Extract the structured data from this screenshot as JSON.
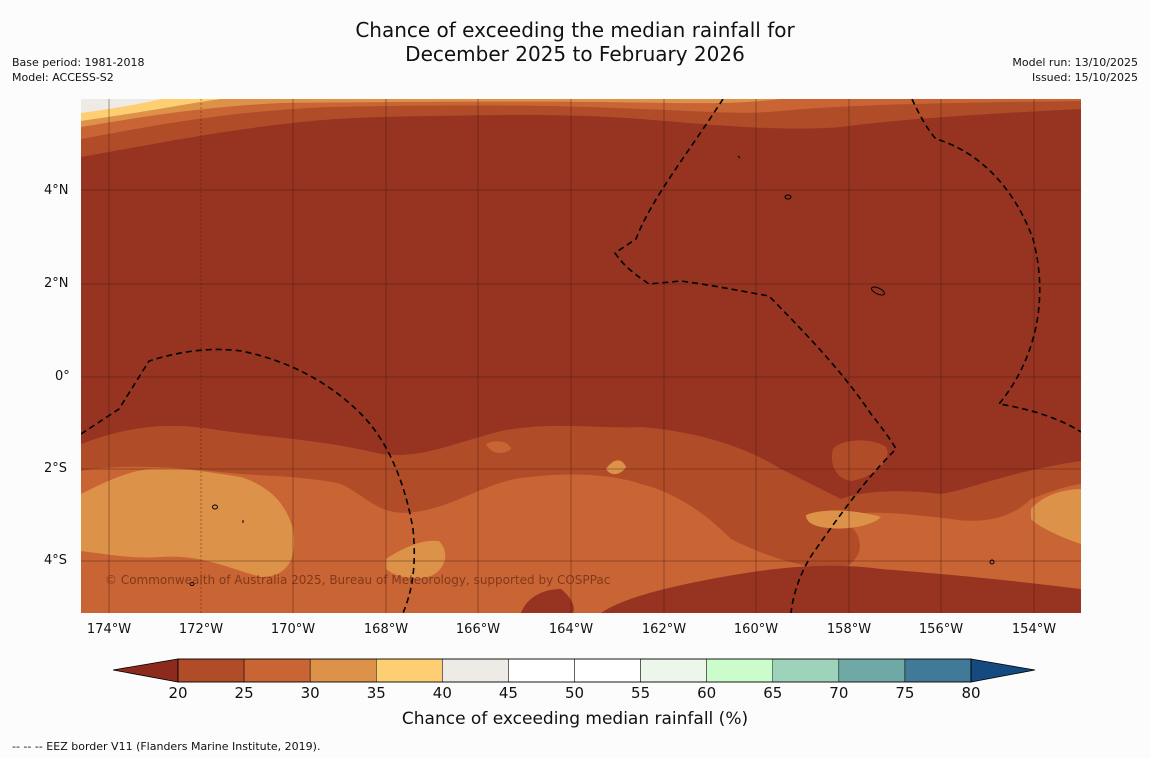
{
  "title": {
    "line1": "Chance of exceeding the median rainfall for",
    "line2": "December 2025 to February 2026"
  },
  "meta_left": {
    "base_period": "Base period: 1981-2018",
    "model": "Model: ACCESS-S2"
  },
  "meta_right": {
    "model_run": "Model run: 13/10/2025",
    "issued": "Issued: 15/10/2025"
  },
  "map": {
    "lon_range": [
      -174.6,
      -152.9
    ],
    "lat_range": [
      -5.2,
      5.8
    ],
    "y_ticks": [
      "4°N",
      "2°N",
      "0°",
      "2°S",
      "4°S"
    ],
    "x_ticks": [
      "174°W",
      "172°W",
      "170°W",
      "168°W",
      "166°W",
      "164°W",
      "162°W",
      "160°W",
      "158°W",
      "156°W",
      "154°W"
    ],
    "copyright": "© Commonwealth of Australia 2025, Bureau of Meteorology, supported by COSPPac"
  },
  "colorbar": {
    "ticks": [
      "20",
      "25",
      "30",
      "35",
      "40",
      "45",
      "50",
      "55",
      "60",
      "65",
      "70",
      "75",
      "80"
    ],
    "colors": [
      "#b14c28",
      "#c96534",
      "#dc9249",
      "#fdcf72",
      "#eeebe6",
      "#ffffff",
      "#ffffff",
      "#ecf6ea",
      "#ccfccc",
      "#9dd3bb",
      "#6ea9a6",
      "#407a98"
    ],
    "under_color": "#8c2a1d",
    "over_color": "#144a80",
    "label": "Chance of exceeding median rainfall (%)"
  },
  "legend_note": "--  --  -- EEZ border V11 (Flanders Marine Institute, 2019).",
  "palette": {
    "dark": "#963321",
    "mid": "#b14c28",
    "light": "#c96534",
    "pale": "#dc9249",
    "yellow": "#fdcf72",
    "grey": "#eeebe6"
  }
}
